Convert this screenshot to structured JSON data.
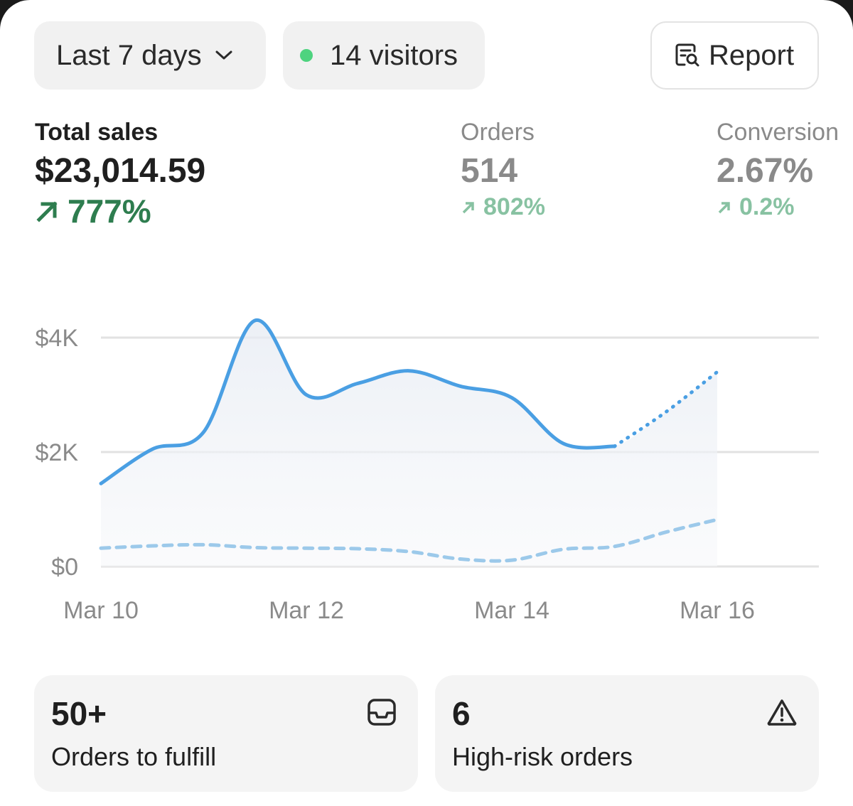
{
  "filters": {
    "date_range": "Last 7 days",
    "visitors": "14 visitors",
    "report_label": "Report"
  },
  "metrics": {
    "total_sales": {
      "label": "Total sales",
      "value": "$23,014.59",
      "change": "777%"
    },
    "orders": {
      "label": "Orders",
      "value": "514",
      "change": "802%"
    },
    "conversion": {
      "label": "Conversion",
      "value": "2.67%",
      "change": "0.2%"
    }
  },
  "chart_data": {
    "type": "line",
    "y_ticks": [
      "$0",
      "$2K",
      "$4K"
    ],
    "ylim": [
      0,
      4000
    ],
    "x_tick_labels": [
      "Mar 10",
      "Mar 12",
      "Mar 14",
      "Mar 16"
    ],
    "series": [
      {
        "style": "solid",
        "color": "#4a9fe3",
        "x": [
          0,
          0.5,
          1,
          1.5,
          2,
          2.5,
          3,
          3.5,
          4,
          4.5,
          5,
          5.5,
          6
        ],
        "y": [
          1450,
          2050,
          2350,
          4300,
          3000,
          3200,
          3420,
          3150,
          2950,
          2150,
          2100,
          2700,
          3400
        ]
      },
      {
        "style": "dashed",
        "color": "#9cc9ea",
        "x": [
          0,
          0.5,
          1,
          1.5,
          2,
          2.5,
          3,
          3.5,
          4,
          4.5,
          5,
          5.5,
          6
        ],
        "y": [
          320,
          360,
          380,
          330,
          320,
          310,
          260,
          130,
          110,
          300,
          350,
          600,
          820
        ]
      }
    ],
    "projected_from_x": 5,
    "grid": true,
    "area_fill": true
  },
  "tiles": [
    {
      "value": "50+",
      "label": "Orders to fulfill",
      "icon": "inbox-icon"
    },
    {
      "value": "6",
      "label": "High-risk orders",
      "icon": "warning-triangle-icon"
    }
  ]
}
